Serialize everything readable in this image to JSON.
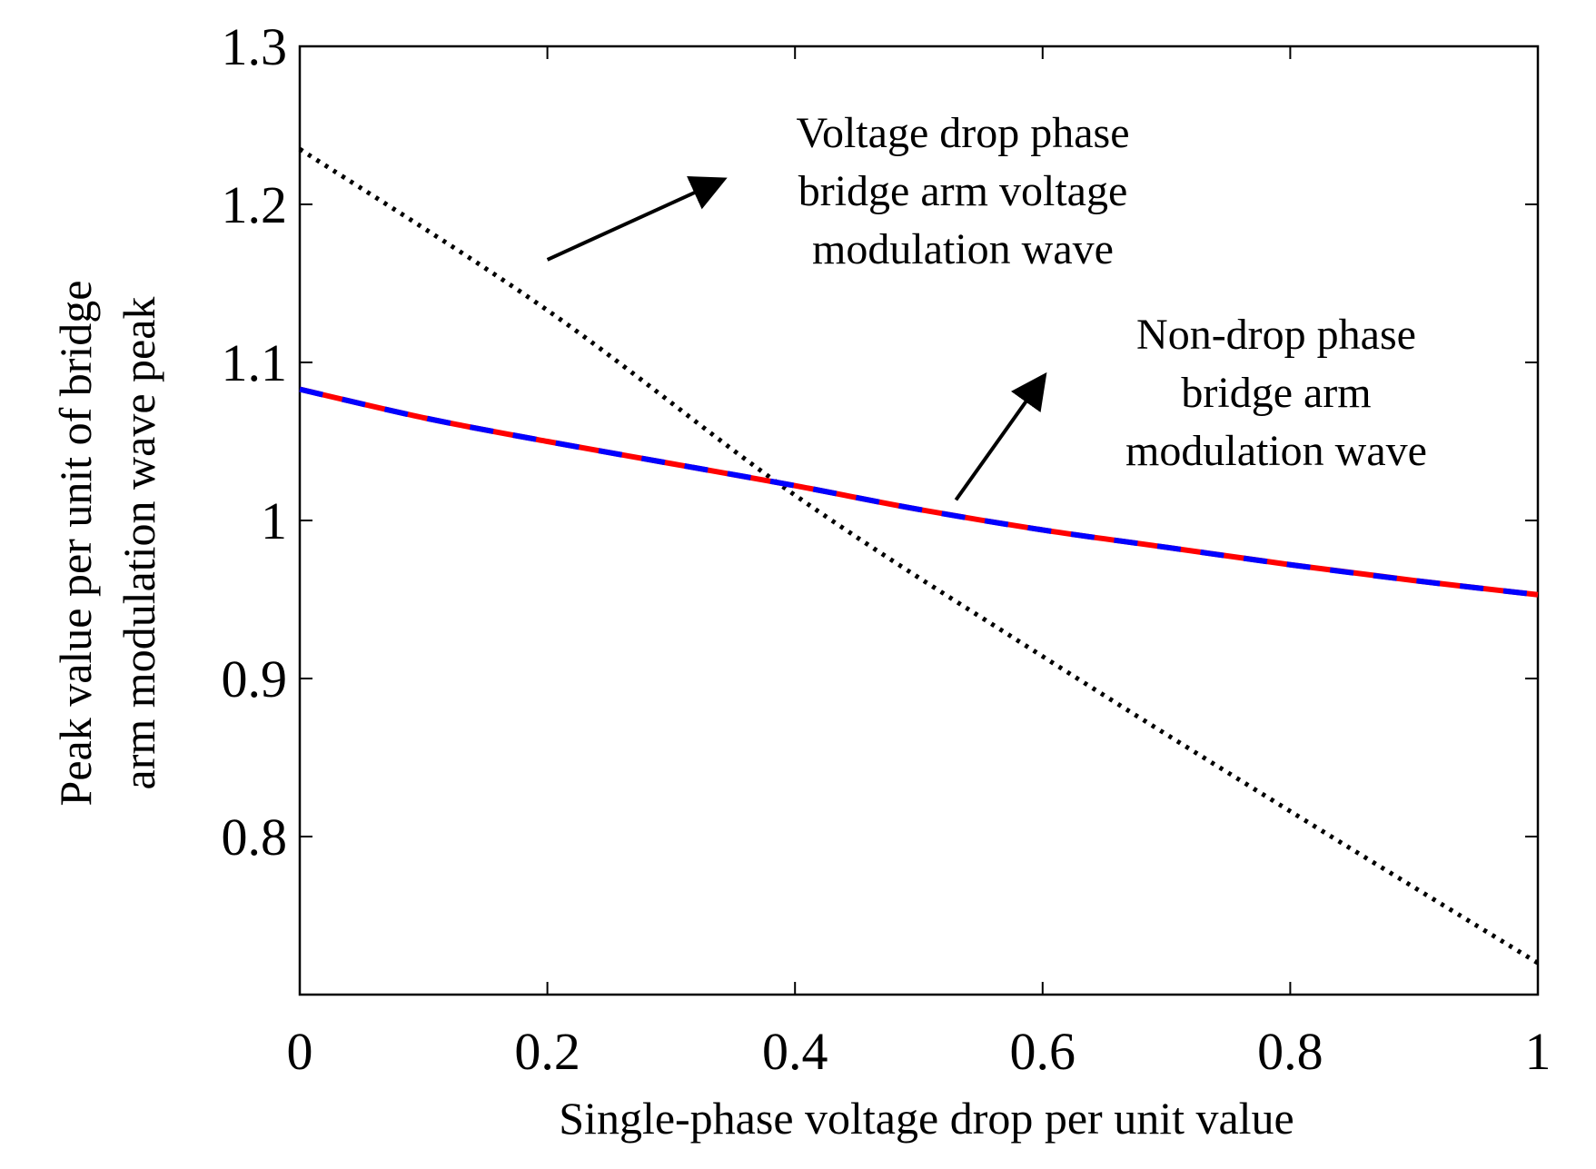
{
  "chart_data": {
    "type": "line",
    "title": "",
    "xlabel": "Single-phase voltage drop per unit value",
    "ylabel": "Peak value per unit of bridge arm modulation wave peak",
    "ylabel_lines": [
      "Peak value per unit of bridge",
      "arm modulation wave peak"
    ],
    "xlim": [
      0,
      1
    ],
    "ylim": [
      0.7,
      1.3
    ],
    "x_ticks": [
      {
        "value": 0,
        "label": "0"
      },
      {
        "value": 0.2,
        "label": "0.2"
      },
      {
        "value": 0.4,
        "label": "0.4"
      },
      {
        "value": 0.6,
        "label": "0.6"
      },
      {
        "value": 0.8,
        "label": "0.8"
      },
      {
        "value": 1,
        "label": "1"
      }
    ],
    "y_ticks": [
      {
        "value": 0.8,
        "label": "0.8"
      },
      {
        "value": 0.9,
        "label": "0.9"
      },
      {
        "value": 1.0,
        "label": "1"
      },
      {
        "value": 1.1,
        "label": "1.1"
      },
      {
        "value": 1.2,
        "label": "1.2"
      },
      {
        "value": 1.3,
        "label": "1.3"
      }
    ],
    "grid": false,
    "series": [
      {
        "name": "Voltage drop phase bridge arm voltage modulation wave",
        "style": "dotted",
        "color": "#000000",
        "x": [
          0,
          0.2,
          0.4,
          0.6,
          0.8,
          1.0
        ],
        "values": [
          1.235,
          1.133,
          1.016,
          0.914,
          0.816,
          0.72
        ]
      },
      {
        "name": "Non-drop phase bridge arm modulation wave (phase 1)",
        "style": "solid",
        "color": "#ff0000",
        "x": [
          0,
          0.1,
          0.2,
          0.3,
          0.4,
          0.5,
          0.6,
          0.7,
          0.8,
          0.9,
          1.0
        ],
        "values": [
          1.083,
          1.065,
          1.05,
          1.036,
          1.022,
          1.007,
          0.994,
          0.983,
          0.972,
          0.962,
          0.953
        ]
      },
      {
        "name": "Non-drop phase bridge arm modulation wave (phase 2)",
        "style": "dashed",
        "color": "#0000ff",
        "x": [
          0,
          0.1,
          0.2,
          0.3,
          0.4,
          0.5,
          0.6,
          0.7,
          0.8,
          0.9,
          1.0
        ],
        "values": [
          1.083,
          1.065,
          1.05,
          1.036,
          1.022,
          1.007,
          0.994,
          0.983,
          0.972,
          0.962,
          0.953
        ]
      }
    ],
    "annotations": [
      {
        "id": "voltage-drop",
        "lines": [
          "Voltage drop phase",
          "bridge arm voltage",
          "modulation wave"
        ],
        "arrow_from": [
          0.2,
          1.165
        ],
        "arrow_to": [
          0.34,
          1.215
        ]
      },
      {
        "id": "non-drop",
        "lines": [
          "Non-drop phase",
          "bridge arm",
          "modulation wave"
        ],
        "arrow_from": [
          0.53,
          1.013
        ],
        "arrow_to": [
          0.6,
          1.09
        ]
      }
    ]
  }
}
